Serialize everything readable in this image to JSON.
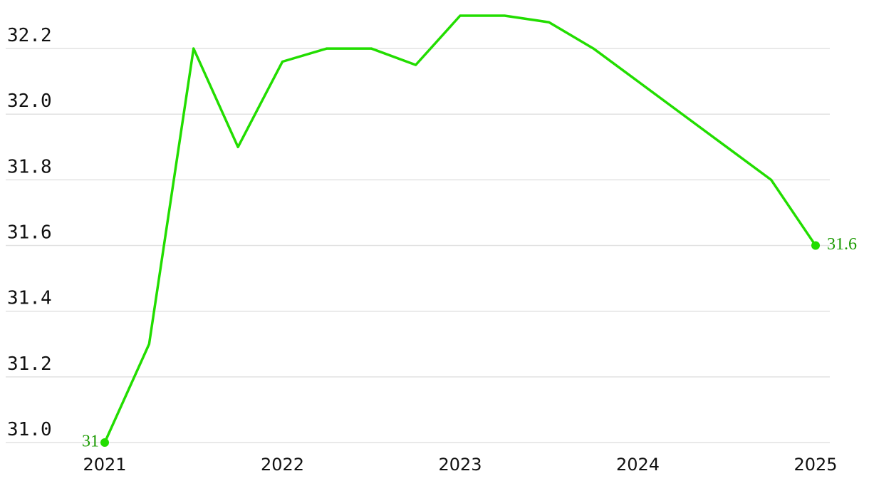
{
  "chart_data": {
    "type": "line",
    "x": [
      2021,
      2021.25,
      2021.5,
      2021.75,
      2022,
      2022.25,
      2022.5,
      2022.75,
      2023,
      2023.25,
      2023.5,
      2023.75,
      2024,
      2024.25,
      2024.5,
      2024.75,
      2025
    ],
    "series": [
      {
        "color": "#22dd00",
        "values": [
          31.0,
          31.3,
          32.2,
          31.9,
          32.16,
          32.2,
          32.2,
          32.15,
          32.3,
          32.3,
          32.28,
          32.2,
          32.1,
          32.0,
          31.9,
          31.8,
          31.6
        ]
      }
    ],
    "xlim": [
      2021,
      2025
    ],
    "xticks": [
      2021,
      2022,
      2023,
      2024,
      2025
    ],
    "ylim": [
      31.0,
      32.3
    ],
    "yticks": [
      {
        "value": 31,
        "label": "31.0"
      },
      31.2,
      31.4,
      31.6,
      31.8,
      {
        "value": 32,
        "label": "32.0"
      },
      32.2
    ],
    "grid": true
  }
}
